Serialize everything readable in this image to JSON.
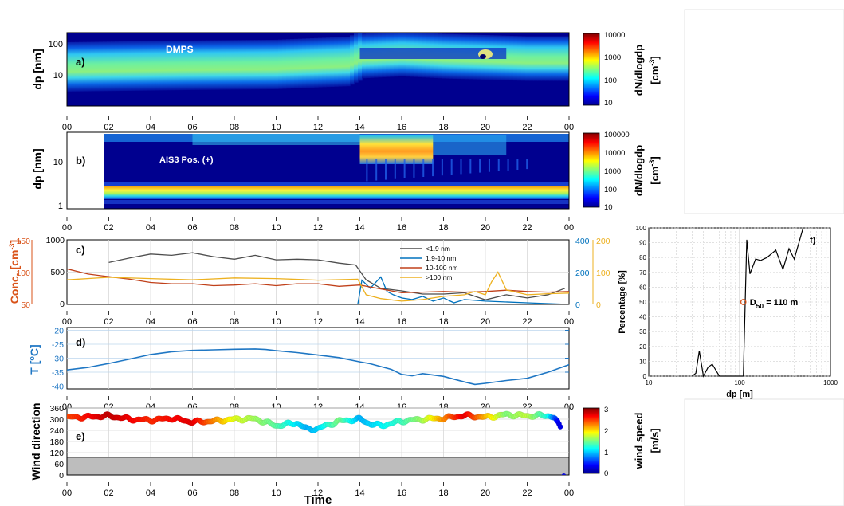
{
  "colors": {
    "navy": "#00008f",
    "conc_orange": "#d95319",
    "series_dark": "#4d4d4d",
    "series_blue": "#0072bd",
    "series_red": "#c0401a",
    "series_yellow": "#edb120",
    "temp_blue": "#1f77c4",
    "d50_marker": "#d95319"
  },
  "time_ticks": [
    "00",
    "02",
    "04",
    "06",
    "08",
    "10",
    "12",
    "14",
    "16",
    "18",
    "20",
    "22",
    "00"
  ],
  "xlabel_time": "Time",
  "chart_data": [
    {
      "id": "a",
      "type": "heatmap",
      "panel_label": "a)",
      "annotation": "DMPS",
      "ylabel": "dp [nm]",
      "yscale": "log",
      "ylim": [
        8,
        600
      ],
      "yticks": [
        "10",
        "100"
      ],
      "colorbar": {
        "label_line1": "dN/dlogdp",
        "label_line2": "[cm",
        "label_sup": "-3",
        "label_end": "]",
        "scale": "log",
        "ticks": [
          "10000",
          "1000",
          "100",
          "10"
        ]
      },
      "mode_diameter_nm": [
        [
          0,
          80
        ],
        [
          6,
          88
        ],
        [
          10,
          92
        ],
        [
          13.5,
          110
        ],
        [
          14,
          150
        ],
        [
          16,
          170
        ],
        [
          18,
          150
        ],
        [
          20,
          140
        ],
        [
          22,
          130
        ],
        [
          24,
          130
        ]
      ]
    },
    {
      "id": "b",
      "type": "heatmap",
      "panel_label": "b)",
      "annotation": "AIS3 Pos. (+)",
      "ylabel": "dp [nm]",
      "yscale": "log",
      "ylim": [
        0.9,
        50
      ],
      "yticks": [
        "1",
        "10"
      ],
      "data_start_hour": 1.8,
      "colorbar": {
        "label_line1": "dN/dlogdp",
        "label_line2": "[cm",
        "label_sup": "-3",
        "label_end": "]",
        "scale": "log",
        "ticks": [
          "100000",
          "10000",
          "1000",
          "100",
          "10"
        ]
      },
      "high_concentration_period_hours": [
        14,
        17.5
      ]
    },
    {
      "id": "c",
      "type": "line",
      "panel_label": "c)",
      "ylabel_main": "Conc. [cm",
      "ylabel_sup": "-3",
      "ylabel_end": "]",
      "left_orange_ticks": [
        "150",
        "100",
        "50"
      ],
      "left_black_ticks": [
        "1000",
        "500",
        "0"
      ],
      "right_blue_ticks": [
        "400",
        "200",
        "0"
      ],
      "right_yellow_ticks": [
        "200",
        "100",
        "0"
      ],
      "xlim": [
        0,
        24
      ],
      "series": [
        {
          "name": "<1.9 nm",
          "axis": "left_black",
          "x": [
            2,
            3,
            4,
            5,
            6,
            7,
            8,
            9,
            10,
            11,
            12,
            13,
            13.8,
            14.3,
            15,
            16,
            17,
            18,
            19,
            20,
            21,
            22,
            23,
            23.8
          ],
          "y": [
            650,
            720,
            780,
            760,
            800,
            740,
            700,
            760,
            690,
            700,
            690,
            640,
            610,
            380,
            250,
            210,
            160,
            160,
            180,
            70,
            150,
            100,
            150,
            250
          ]
        },
        {
          "name": "1.9-10 nm",
          "axis": "right_blue",
          "x": [
            0,
            4,
            8,
            12,
            13.9,
            14.1,
            14.5,
            15,
            15.3,
            15.6,
            16,
            16.5,
            17,
            17.5,
            18,
            18.5,
            19,
            20,
            22,
            24
          ],
          "y": [
            0,
            0,
            0,
            0,
            0,
            150,
            100,
            170,
            80,
            60,
            40,
            30,
            50,
            20,
            40,
            10,
            30,
            20,
            10,
            0
          ]
        },
        {
          "name": "10-100  nm",
          "axis": "left_orange",
          "x": [
            0,
            1,
            2,
            3,
            4,
            5,
            6,
            7,
            8,
            9,
            10,
            11,
            12,
            13,
            14,
            15,
            16,
            17,
            18,
            19,
            20,
            21,
            22,
            23,
            24
          ],
          "y": [
            105,
            97,
            93,
            89,
            84,
            82,
            82,
            79,
            80,
            82,
            79,
            82,
            82,
            78,
            80,
            74,
            68,
            69,
            70,
            69,
            70,
            72,
            70,
            69,
            70
          ]
        },
        {
          "name": ">100 nm",
          "axis": "right_yellow",
          "x": [
            0,
            2,
            4,
            6,
            8,
            10,
            12,
            13.9,
            14.3,
            15,
            16,
            17,
            18,
            19,
            19.5,
            20,
            20.3,
            20.6,
            21,
            22,
            23,
            24
          ],
          "y": [
            76,
            84,
            80,
            76,
            82,
            80,
            75,
            78,
            30,
            18,
            10,
            15,
            25,
            30,
            40,
            30,
            70,
            100,
            45,
            30,
            33,
            35
          ]
        }
      ],
      "legend_position": "top-right"
    },
    {
      "id": "d",
      "type": "line",
      "panel_label": "d)",
      "ylabel_main": "T [",
      "ylabel_sup": "o",
      "ylabel_end": "C]",
      "yticks": [
        "-20",
        "-25",
        "-30",
        "-35",
        "-40"
      ],
      "ylim": [
        -41,
        -19
      ],
      "series": [
        {
          "name": "T",
          "x": [
            0,
            1,
            2,
            3,
            4,
            5,
            6,
            7,
            8,
            9,
            9.5,
            10,
            11,
            12,
            13,
            14,
            14.5,
            15,
            15.5,
            16,
            16.5,
            17,
            18,
            19,
            19.5,
            20,
            21,
            22,
            23,
            24
          ],
          "y": [
            -34.2,
            -33.3,
            -31.9,
            -30.3,
            -28.7,
            -27.7,
            -27.2,
            -27.0,
            -26.8,
            -26.7,
            -26.9,
            -27.3,
            -28.0,
            -28.9,
            -29.8,
            -31.3,
            -32.0,
            -33.0,
            -34.0,
            -35.8,
            -36.3,
            -35.5,
            -36.5,
            -38.5,
            -39.4,
            -39.0,
            -38.0,
            -37.2,
            -35.0,
            -32.3
          ]
        }
      ]
    },
    {
      "id": "e",
      "type": "scatter",
      "panel_label": "e)",
      "ylabel": "Wind direction",
      "xlabel": "Time",
      "yticks": [
        "360",
        "300",
        "240",
        "180",
        "120",
        "60",
        "0"
      ],
      "ylim": [
        0,
        360
      ],
      "shaded_band": [
        0,
        95
      ],
      "colorbar": {
        "label_line1": "wind speed",
        "label_line2": "[m/s]",
        "ticks": [
          "3",
          "2",
          "1",
          "0"
        ],
        "range": [
          0,
          3
        ]
      },
      "direction_profile": [
        [
          0,
          310
        ],
        [
          1,
          312
        ],
        [
          2,
          318
        ],
        [
          3,
          300
        ],
        [
          4,
          295
        ],
        [
          5,
          305
        ],
        [
          6,
          285
        ],
        [
          7,
          290
        ],
        [
          8,
          300
        ],
        [
          9,
          302
        ],
        [
          10,
          265
        ],
        [
          11,
          280
        ],
        [
          11.5,
          245
        ],
        [
          12,
          250
        ],
        [
          13,
          290
        ],
        [
          14,
          300
        ],
        [
          14.5,
          275
        ],
        [
          15,
          265
        ],
        [
          16,
          290
        ],
        [
          17,
          300
        ],
        [
          18,
          305
        ],
        [
          19,
          320
        ],
        [
          20,
          310
        ],
        [
          21,
          325
        ],
        [
          22,
          318
        ],
        [
          23,
          320
        ],
        [
          23.3,
          310
        ],
        [
          23.6,
          250
        ]
      ],
      "speed_profile": [
        [
          0,
          2.4
        ],
        [
          2,
          2.8
        ],
        [
          4,
          2.5
        ],
        [
          6,
          2.7
        ],
        [
          8,
          1.8
        ],
        [
          10,
          1.4
        ],
        [
          11.5,
          0.9
        ],
        [
          12,
          1.0
        ],
        [
          13,
          1.5
        ],
        [
          14,
          0.9
        ],
        [
          15,
          1.1
        ],
        [
          16,
          1.3
        ],
        [
          17,
          1.6
        ],
        [
          18,
          2.2
        ],
        [
          19,
          2.7
        ],
        [
          20,
          2.1
        ],
        [
          21,
          1.5
        ],
        [
          22,
          1.7
        ],
        [
          23,
          1.2
        ],
        [
          23.5,
          0.3
        ]
      ]
    },
    {
      "id": "f",
      "type": "line",
      "panel_label": "f)",
      "xlabel": "dp [m]",
      "ylabel": "Percentage [%]",
      "xscale": "log",
      "xlim": [
        10,
        1000
      ],
      "ylim": [
        0,
        100
      ],
      "xticks": [
        "10",
        "100",
        "1000"
      ],
      "yticks": [
        "100",
        "90",
        "80",
        "70",
        "60",
        "50",
        "40",
        "30",
        "20",
        "10",
        "0"
      ],
      "annotation": "D",
      "annotation_sub": "50",
      "annotation_end": " = 110 m",
      "d50_x": 110,
      "d50_y": 50,
      "series": [
        {
          "name": "f",
          "x": [
            30,
            33,
            36,
            40,
            45,
            50,
            60,
            70,
            110,
            120,
            130,
            150,
            170,
            200,
            250,
            300,
            350,
            400,
            500
          ],
          "y": [
            0,
            2,
            17,
            0,
            6,
            8,
            0,
            0,
            0,
            92,
            69,
            79,
            78,
            80,
            85,
            72,
            86,
            79,
            100
          ]
        }
      ]
    }
  ]
}
